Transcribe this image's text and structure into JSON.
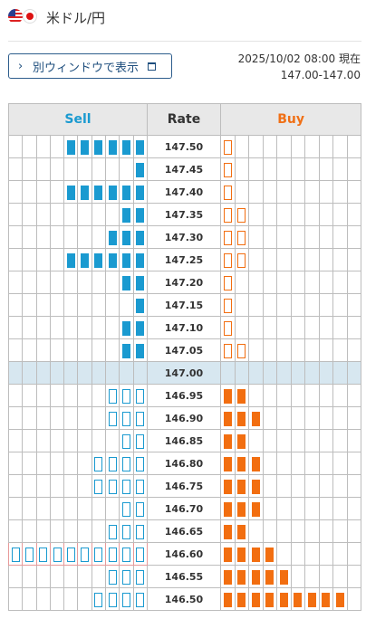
{
  "header": {
    "pair_title": "米ドル/円"
  },
  "toolbar": {
    "open_window_label": "別ウィンドウで表示"
  },
  "status": {
    "timestamp": "2025/10/02 08:00 現在",
    "rate_range": "147.00-147.00"
  },
  "table": {
    "headers": {
      "sell": "Sell",
      "rate": "Rate",
      "buy": "Buy"
    },
    "colors": {
      "sell": "#1a9ad0",
      "buy": "#f26e10",
      "current_row": "#d7e7f0"
    },
    "rows": [
      {
        "rate": "147.50",
        "sell": 6,
        "sell_filled": true,
        "buy": 1,
        "buy_filled": false
      },
      {
        "rate": "147.45",
        "sell": 1,
        "sell_filled": true,
        "buy": 1,
        "buy_filled": false
      },
      {
        "rate": "147.40",
        "sell": 6,
        "sell_filled": true,
        "buy": 1,
        "buy_filled": false
      },
      {
        "rate": "147.35",
        "sell": 2,
        "sell_filled": true,
        "buy": 2,
        "buy_filled": false
      },
      {
        "rate": "147.30",
        "sell": 3,
        "sell_filled": true,
        "buy": 2,
        "buy_filled": false
      },
      {
        "rate": "147.25",
        "sell": 6,
        "sell_filled": true,
        "buy": 2,
        "buy_filled": false
      },
      {
        "rate": "147.20",
        "sell": 2,
        "sell_filled": true,
        "buy": 1,
        "buy_filled": false
      },
      {
        "rate": "147.15",
        "sell": 1,
        "sell_filled": true,
        "buy": 1,
        "buy_filled": false
      },
      {
        "rate": "147.10",
        "sell": 2,
        "sell_filled": true,
        "buy": 1,
        "buy_filled": false
      },
      {
        "rate": "147.05",
        "sell": 2,
        "sell_filled": true,
        "buy": 2,
        "buy_filled": false
      },
      {
        "rate": "147.00",
        "sell": 0,
        "sell_filled": true,
        "buy": 0,
        "buy_filled": true,
        "current": true
      },
      {
        "rate": "146.95",
        "sell": 3,
        "sell_filled": false,
        "buy": 2,
        "buy_filled": true
      },
      {
        "rate": "146.90",
        "sell": 3,
        "sell_filled": false,
        "buy": 3,
        "buy_filled": true
      },
      {
        "rate": "146.85",
        "sell": 2,
        "sell_filled": false,
        "buy": 2,
        "buy_filled": true
      },
      {
        "rate": "146.80",
        "sell": 4,
        "sell_filled": false,
        "buy": 3,
        "buy_filled": true
      },
      {
        "rate": "146.75",
        "sell": 4,
        "sell_filled": false,
        "buy": 3,
        "buy_filled": true
      },
      {
        "rate": "146.70",
        "sell": 2,
        "sell_filled": false,
        "buy": 3,
        "buy_filled": true
      },
      {
        "rate": "146.65",
        "sell": 3,
        "sell_filled": false,
        "buy": 2,
        "buy_filled": true
      },
      {
        "rate": "146.60",
        "sell": 10,
        "sell_filled": false,
        "buy": 4,
        "buy_filled": true,
        "highlight": true
      },
      {
        "rate": "146.55",
        "sell": 3,
        "sell_filled": false,
        "buy": 5,
        "buy_filled": true
      },
      {
        "rate": "146.50",
        "sell": 4,
        "sell_filled": false,
        "buy": 9,
        "buy_filled": true
      }
    ]
  }
}
